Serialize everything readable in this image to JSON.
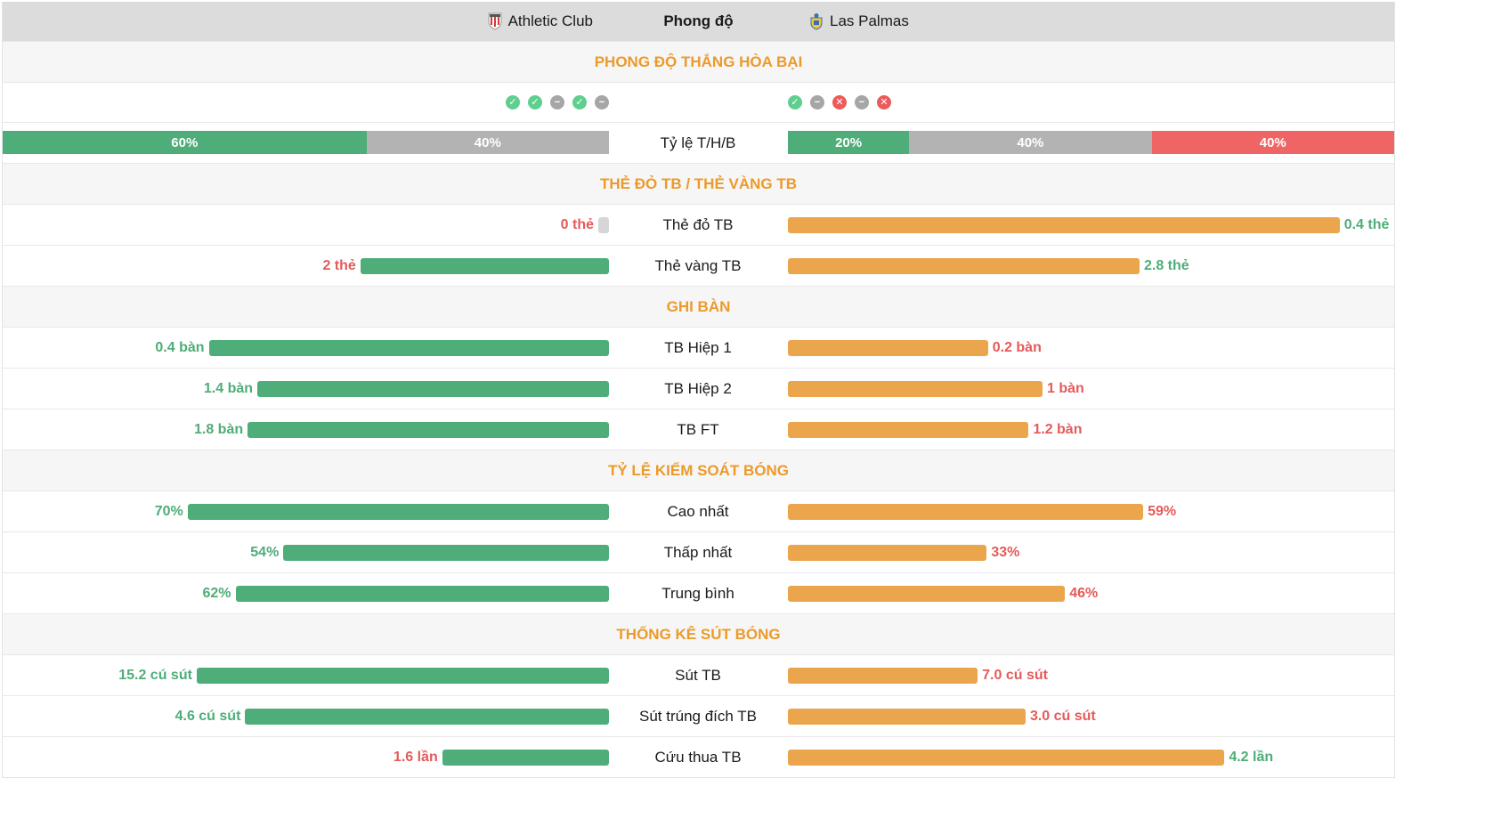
{
  "header": {
    "home_team": "Athletic Club",
    "title": "Phong độ",
    "away_team": "Las Palmas",
    "home_logo": "athletic-club-crest-icon",
    "away_logo": "las-palmas-crest-icon"
  },
  "sections": {
    "form": "PHONG ĐỘ THẮNG HÒA BẠI",
    "cards": "THẺ ĐỎ TB / THẺ VÀNG TB",
    "goals": "GHI BÀN",
    "possession": "TỶ LỆ KIỂM SOÁT BÓNG",
    "shots": "THỐNG KÊ SÚT BÓNG"
  },
  "form": {
    "home": [
      "win",
      "win",
      "draw",
      "win",
      "draw"
    ],
    "away": [
      "win",
      "draw",
      "loss",
      "draw",
      "loss"
    ]
  },
  "ratio": {
    "label": "Tỷ lệ T/H/B",
    "home": [
      {
        "type": "w",
        "value": 60,
        "text": "60%"
      },
      {
        "type": "d",
        "value": 40,
        "text": "40%"
      }
    ],
    "away": [
      {
        "type": "w",
        "value": 20,
        "text": "20%"
      },
      {
        "type": "d",
        "value": 40,
        "text": "40%"
      },
      {
        "type": "l",
        "value": 40,
        "text": "40%"
      }
    ]
  },
  "rows": {
    "red_cards": {
      "label": "Thẻ đỏ TB",
      "home_text": "0 thẻ",
      "home_frac": 0.0,
      "home_color": "r",
      "home_bar": "grey",
      "away_text": "0.4 thẻ",
      "away_frac": 0.91,
      "away_color": "g"
    },
    "yellow_cards": {
      "label": "Thẻ vàng TB",
      "home_text": "2 thẻ",
      "home_frac": 0.41,
      "home_color": "r",
      "home_bar": "green",
      "away_text": "2.8 thẻ",
      "away_frac": 0.58,
      "away_color": "g"
    },
    "goals_h1": {
      "label": "TB Hiệp 1",
      "home_text": "0.4 bàn",
      "home_frac": 0.66,
      "home_color": "g",
      "home_bar": "green",
      "away_text": "0.2 bàn",
      "away_frac": 0.33,
      "away_color": "r"
    },
    "goals_h2": {
      "label": "TB Hiệp 2",
      "home_text": "1.4 bàn",
      "home_frac": 0.58,
      "home_color": "g",
      "home_bar": "green",
      "away_text": "1 bàn",
      "away_frac": 0.42,
      "away_color": "r"
    },
    "goals_ft": {
      "label": "TB FT",
      "home_text": "1.8 bàn",
      "home_frac": 0.596,
      "home_color": "g",
      "home_bar": "green",
      "away_text": "1.2 bàn",
      "away_frac": 0.397,
      "away_color": "r"
    },
    "poss_max": {
      "label": "Cao nhất",
      "home_text": "70%",
      "home_frac": 0.695,
      "home_color": "g",
      "home_bar": "green",
      "away_text": "59%",
      "away_frac": 0.586,
      "away_color": "r"
    },
    "poss_min": {
      "label": "Thấp nhất",
      "home_text": "54%",
      "home_frac": 0.537,
      "home_color": "g",
      "home_bar": "green",
      "away_text": "33%",
      "away_frac": 0.328,
      "away_color": "r"
    },
    "poss_avg": {
      "label": "Trung bình",
      "home_text": "62%",
      "home_frac": 0.616,
      "home_color": "g",
      "home_bar": "green",
      "away_text": "46%",
      "away_frac": 0.457,
      "away_color": "r"
    },
    "shots_avg": {
      "label": "Sút TB",
      "home_text": "15.2 cú sút",
      "home_frac": 0.68,
      "home_color": "g",
      "home_bar": "green",
      "away_text": "7.0 cú sút",
      "away_frac": 0.313,
      "away_color": "r"
    },
    "shots_on": {
      "label": "Sút trúng đích TB",
      "home_text": "4.6 cú sút",
      "home_frac": 0.6,
      "home_color": "g",
      "home_bar": "green",
      "away_text": "3.0 cú sút",
      "away_frac": 0.392,
      "away_color": "r"
    },
    "saves": {
      "label": "Cứu thua TB",
      "home_text": "1.6 lần",
      "home_frac": 0.275,
      "home_color": "r",
      "home_bar": "green",
      "away_text": "4.2 lần",
      "away_frac": 0.72,
      "away_color": "g"
    }
  }
}
